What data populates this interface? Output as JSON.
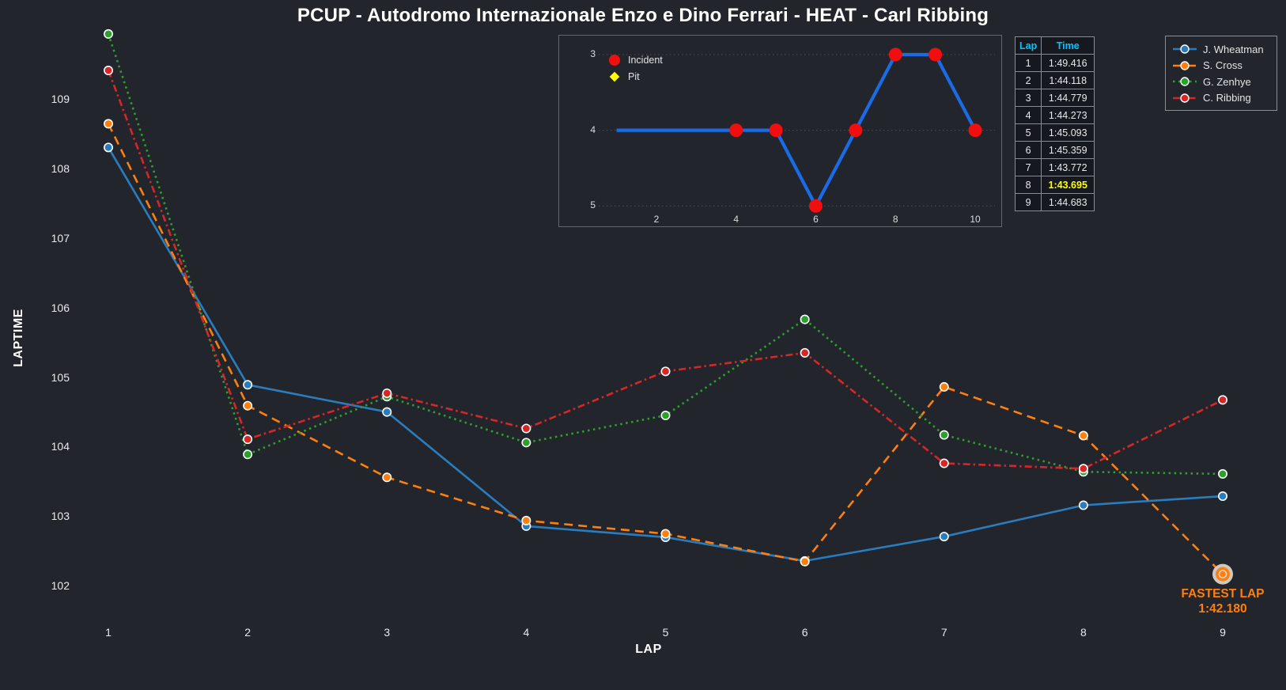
{
  "title": "PCUP - Autodromo Internazionale Enzo e Dino Ferrari - HEAT - Carl Ribbing",
  "colors": {
    "background": "#22262c",
    "text": "#ffffff",
    "tick_text": "#e8e8e8",
    "blue": "#2b7cbe",
    "orange": "#ff7f0e",
    "green": "#2ca02c",
    "red": "#d62728",
    "inset_line": "#1a6ce6",
    "incident_red": "#f10e0e",
    "pit_yellow": "#ffff00",
    "table_header": "#00c3ff",
    "fastest_yellow": "#ffff00"
  },
  "chart_data": [
    {
      "type": "line",
      "name": "laptime-chart",
      "xlabel": "LAP",
      "ylabel": "LAPTIME",
      "x": [
        1,
        2,
        3,
        4,
        5,
        6,
        7,
        8,
        9
      ],
      "xticks": [
        1,
        2,
        3,
        4,
        5,
        6,
        7,
        8,
        9
      ],
      "yticks": [
        102,
        103,
        104,
        105,
        106,
        107,
        108,
        109
      ],
      "ylim": [
        101.5,
        110.4
      ],
      "grid": false,
      "legend_position": "top-right",
      "series": [
        {
          "name": "J. Wheatman",
          "color": "#2b7cbe",
          "style": "solid",
          "values": [
            108.31,
            104.9,
            104.51,
            102.87,
            102.71,
            102.37,
            102.72,
            103.17,
            103.3
          ]
        },
        {
          "name": "S. Cross",
          "color": "#ff7f0e",
          "style": "dashed",
          "values": [
            108.65,
            104.6,
            103.57,
            102.95,
            102.76,
            102.36,
            104.87,
            104.17,
            102.18
          ]
        },
        {
          "name": "G. Zenhye",
          "color": "#2ca02c",
          "style": "dotted",
          "values": [
            109.94,
            103.9,
            104.73,
            104.07,
            104.46,
            105.84,
            104.18,
            103.65,
            103.62
          ]
        },
        {
          "name": "C. Ribbing",
          "color": "#d62728",
          "style": "dashdot",
          "values": [
            109.416,
            104.118,
            104.779,
            104.273,
            105.093,
            105.359,
            103.772,
            103.695,
            104.683
          ]
        }
      ],
      "annotation": {
        "label": "FASTEST LAP",
        "value": "1:42.180",
        "series": "S. Cross",
        "lap": 9
      }
    },
    {
      "type": "line",
      "name": "position-inset-chart",
      "x": [
        1,
        2,
        3,
        4,
        5,
        6,
        7,
        8,
        9,
        10
      ],
      "positions": [
        4,
        4,
        4,
        4,
        4,
        5,
        4,
        3,
        3,
        4
      ],
      "incident_laps": [
        4,
        5,
        6,
        7,
        8,
        9,
        10
      ],
      "pit_laps": [],
      "yticks": [
        3,
        4,
        5
      ],
      "xticks": [
        2,
        4,
        6,
        8,
        10
      ],
      "y_inverted": true,
      "grid": true,
      "line_color": "#1a6ce6",
      "legend": [
        {
          "label": "Incident",
          "marker": "circle",
          "color": "#f10e0e"
        },
        {
          "label": "Pit",
          "marker": "diamond",
          "color": "#ffff00"
        }
      ]
    }
  ],
  "lap_table": {
    "headers": [
      "Lap",
      "Time"
    ],
    "rows": [
      {
        "lap": "1",
        "time": "1:49.416",
        "fastest": false
      },
      {
        "lap": "2",
        "time": "1:44.118",
        "fastest": false
      },
      {
        "lap": "3",
        "time": "1:44.779",
        "fastest": false
      },
      {
        "lap": "4",
        "time": "1:44.273",
        "fastest": false
      },
      {
        "lap": "5",
        "time": "1:45.093",
        "fastest": false
      },
      {
        "lap": "6",
        "time": "1:45.359",
        "fastest": false
      },
      {
        "lap": "7",
        "time": "1:43.772",
        "fastest": false
      },
      {
        "lap": "8",
        "time": "1:43.695",
        "fastest": true
      },
      {
        "lap": "9",
        "time": "1:44.683",
        "fastest": false
      }
    ]
  }
}
